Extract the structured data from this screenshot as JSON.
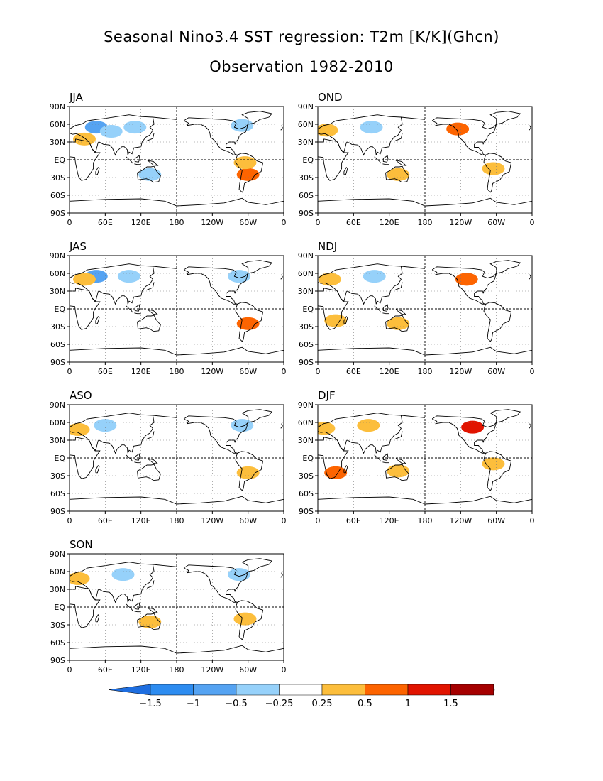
{
  "chart_data": {
    "type": "heatmap",
    "title": "Seasonal Nino3.4 SST regression: T2m [K/K](Ghcn)",
    "subtitle": "Observation 1982-2010",
    "x_ticks": [
      "0",
      "60E",
      "120E",
      "180",
      "120W",
      "60W",
      "0"
    ],
    "y_ticks": [
      "90N",
      "60N",
      "30N",
      "EQ",
      "30S",
      "60S",
      "90S"
    ],
    "xlim": [
      0,
      360
    ],
    "ylim": [
      -90,
      90
    ],
    "panels": [
      {
        "label": "JJA",
        "regions": [
          {
            "lon": 45,
            "lat": 55,
            "value": -0.5
          },
          {
            "lon": 70,
            "lat": 48,
            "value": -0.25
          },
          {
            "lon": 110,
            "lat": 55,
            "value": -0.25
          },
          {
            "lon": 290,
            "lat": 58,
            "value": -0.25
          },
          {
            "lon": 300,
            "lat": -25,
            "value": 0.5
          },
          {
            "lon": 295,
            "lat": -5,
            "value": 0.25
          },
          {
            "lon": 25,
            "lat": 35,
            "value": 0.25
          },
          {
            "lon": 135,
            "lat": -25,
            "value": -0.25
          }
        ]
      },
      {
        "label": "OND",
        "regions": [
          {
            "lon": 90,
            "lat": 55,
            "value": -0.25
          },
          {
            "lon": 15,
            "lat": 50,
            "value": 0.25
          },
          {
            "lon": 235,
            "lat": 52,
            "value": 0.5
          },
          {
            "lon": 135,
            "lat": -25,
            "value": 0.25
          },
          {
            "lon": 295,
            "lat": -15,
            "value": 0.25
          }
        ]
      },
      {
        "label": "JAS",
        "regions": [
          {
            "lon": 45,
            "lat": 55,
            "value": -0.5
          },
          {
            "lon": 100,
            "lat": 55,
            "value": -0.25
          },
          {
            "lon": 25,
            "lat": 50,
            "value": 0.25
          },
          {
            "lon": 300,
            "lat": -25,
            "value": 0.5
          },
          {
            "lon": 285,
            "lat": 55,
            "value": -0.25
          }
        ]
      },
      {
        "label": "NDJ",
        "regions": [
          {
            "lon": 95,
            "lat": 55,
            "value": -0.25
          },
          {
            "lon": 250,
            "lat": 50,
            "value": 0.5
          },
          {
            "lon": 20,
            "lat": 50,
            "value": 0.25
          },
          {
            "lon": 135,
            "lat": -25,
            "value": 0.25
          },
          {
            "lon": 30,
            "lat": -20,
            "value": 0.25
          }
        ]
      },
      {
        "label": "ASO",
        "regions": [
          {
            "lon": 60,
            "lat": 55,
            "value": -0.25
          },
          {
            "lon": 290,
            "lat": 55,
            "value": -0.25
          },
          {
            "lon": 300,
            "lat": -25,
            "value": 0.25
          },
          {
            "lon": 15,
            "lat": 48,
            "value": 0.25
          }
        ]
      },
      {
        "label": "DJF",
        "regions": [
          {
            "lon": 260,
            "lat": 52,
            "value": 1
          },
          {
            "lon": 85,
            "lat": 55,
            "value": 0.25
          },
          {
            "lon": 30,
            "lat": -25,
            "value": 0.5
          },
          {
            "lon": 135,
            "lat": -22,
            "value": 0.25
          },
          {
            "lon": 295,
            "lat": -10,
            "value": 0.25
          },
          {
            "lon": 10,
            "lat": 50,
            "value": 0.25
          }
        ]
      },
      {
        "label": "SON",
        "regions": [
          {
            "lon": 90,
            "lat": 55,
            "value": -0.25
          },
          {
            "lon": 15,
            "lat": 48,
            "value": 0.25
          },
          {
            "lon": 135,
            "lat": -25,
            "value": 0.25
          },
          {
            "lon": 295,
            "lat": -20,
            "value": 0.25
          },
          {
            "lon": 285,
            "lat": 55,
            "value": -0.25
          }
        ]
      }
    ],
    "colorbar": {
      "labels": [
        "-1.5",
        "-1",
        "-0.5",
        "-0.25",
        "0.25",
        "0.5",
        "1",
        "1.5"
      ],
      "colors": [
        "#1e6ee0",
        "#2d8cf0",
        "#55a3f2",
        "#96d1fa",
        "#ffffff",
        "#fcbe3c",
        "#fd6400",
        "#e11400",
        "#a50000",
        "#8b0000"
      ]
    }
  }
}
